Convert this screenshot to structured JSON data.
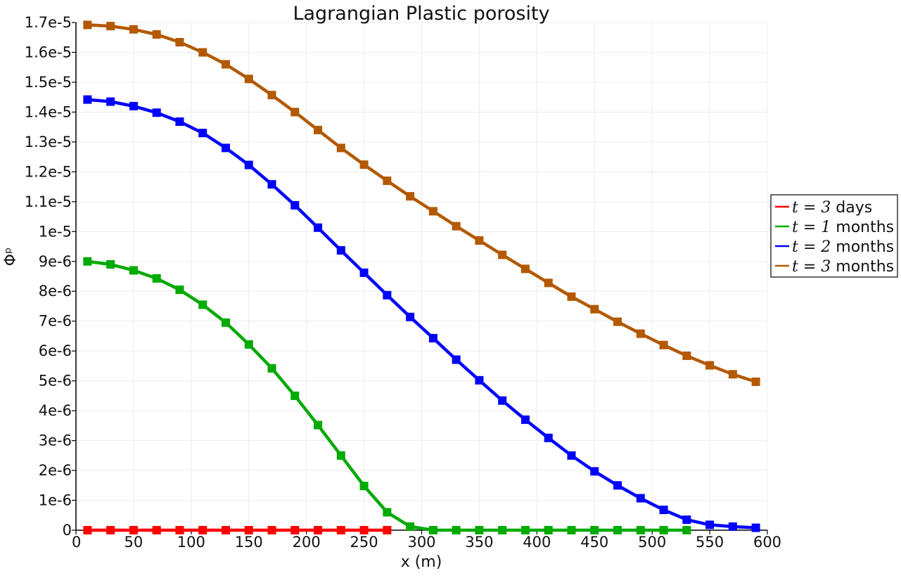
{
  "chart_data": {
    "type": "line",
    "title": "Lagrangian Plastic porosity",
    "xlabel": "x (m)",
    "ylabel": "Φᵖ",
    "xlim": [
      0,
      600
    ],
    "ylim": [
      0,
      1.7e-05
    ],
    "x_ticks": [
      0,
      50,
      100,
      150,
      200,
      250,
      300,
      350,
      400,
      450,
      500,
      550,
      600
    ],
    "x_tick_labels": [
      "0",
      "50",
      "100",
      "150",
      "200",
      "250",
      "300",
      "350",
      "400",
      "450",
      "500",
      "550",
      "600"
    ],
    "y_ticks": [
      0,
      1e-06,
      2e-06,
      3e-06,
      4e-06,
      5e-06,
      6e-06,
      7e-06,
      8e-06,
      9e-06,
      1e-05,
      1.1e-05,
      1.2e-05,
      1.3e-05,
      1.4e-05,
      1.5e-05,
      1.6e-05,
      1.7e-05
    ],
    "y_tick_labels": [
      "0",
      "1e-6",
      "2e-6",
      "3e-6",
      "4e-6",
      "5e-6",
      "6e-6",
      "7e-6",
      "8e-6",
      "9e-6",
      "1e-5",
      "1.1e-5",
      "1.2e-5",
      "1.3e-5",
      "1.4e-5",
      "1.5e-5",
      "1.6e-5",
      "1.7e-5"
    ],
    "grid": true,
    "legend_position": "right",
    "series": [
      {
        "name": "t=3 days",
        "legend_symbol": "t = 3",
        "legend_suffix": "days",
        "color": "#ff0000",
        "x": [
          10,
          30,
          50,
          70,
          90,
          110,
          130,
          150,
          170,
          190,
          210,
          230,
          250,
          270
        ],
        "y": [
          0,
          0,
          0,
          0,
          0,
          0,
          0,
          0,
          0,
          0,
          0,
          0,
          0,
          0
        ]
      },
      {
        "name": "t=1 months",
        "legend_symbol": "t = 1",
        "legend_suffix": "months",
        "color": "#00aa00",
        "x": [
          10,
          30,
          50,
          70,
          90,
          110,
          130,
          150,
          170,
          190,
          210,
          230,
          250,
          270,
          290,
          310,
          330,
          350,
          370,
          390,
          410,
          430,
          450,
          470,
          490,
          510,
          530
        ],
        "y": [
          9e-06,
          8.9e-06,
          8.7e-06,
          8.43e-06,
          8.05e-06,
          7.55e-06,
          6.95e-06,
          6.22e-06,
          5.42e-06,
          4.5e-06,
          3.52e-06,
          2.5e-06,
          1.48e-06,
          6e-07,
          1.2e-07,
          0,
          0,
          0,
          0,
          0,
          0,
          0,
          0,
          0,
          0,
          0,
          0
        ]
      },
      {
        "name": "t=2 months",
        "legend_symbol": "t = 2",
        "legend_suffix": "months",
        "color": "#0000ff",
        "x": [
          10,
          30,
          50,
          70,
          90,
          110,
          130,
          150,
          170,
          190,
          210,
          230,
          250,
          270,
          290,
          310,
          330,
          350,
          370,
          390,
          410,
          430,
          450,
          470,
          490,
          510,
          530,
          550,
          570,
          590
        ],
        "y": [
          1.442e-05,
          1.435e-05,
          1.42e-05,
          1.398e-05,
          1.368e-05,
          1.33e-05,
          1.28e-05,
          1.223e-05,
          1.158e-05,
          1.088e-05,
          1.013e-05,
          9.37e-06,
          8.62e-06,
          7.87e-06,
          7.14e-06,
          6.43e-06,
          5.71e-06,
          5.02e-06,
          4.34e-06,
          3.7e-06,
          3.09e-06,
          2.5e-06,
          1.97e-06,
          1.5e-06,
          1.07e-06,
          6.8e-07,
          3.5e-07,
          1.8e-07,
          1.2e-07,
          8e-08
        ]
      },
      {
        "name": "t=3 months",
        "legend_symbol": "t = 3",
        "legend_suffix": "months",
        "color": "#b35900",
        "x": [
          10,
          30,
          50,
          70,
          90,
          110,
          130,
          150,
          170,
          190,
          210,
          230,
          250,
          270,
          290,
          310,
          330,
          350,
          370,
          390,
          410,
          430,
          450,
          470,
          490,
          510,
          530,
          550,
          570,
          590
        ],
        "y": [
          1.692e-05,
          1.688e-05,
          1.677e-05,
          1.66e-05,
          1.634e-05,
          1.6e-05,
          1.56e-05,
          1.511e-05,
          1.457e-05,
          1.4e-05,
          1.34e-05,
          1.28e-05,
          1.224e-05,
          1.17e-05,
          1.118e-05,
          1.068e-05,
          1.018e-05,
          9.7e-06,
          9.22e-06,
          8.75e-06,
          8.28e-06,
          7.82e-06,
          7.4e-06,
          6.98e-06,
          6.58e-06,
          6.2e-06,
          5.84e-06,
          5.52e-06,
          5.22e-06,
          4.97e-06
        ]
      }
    ]
  }
}
